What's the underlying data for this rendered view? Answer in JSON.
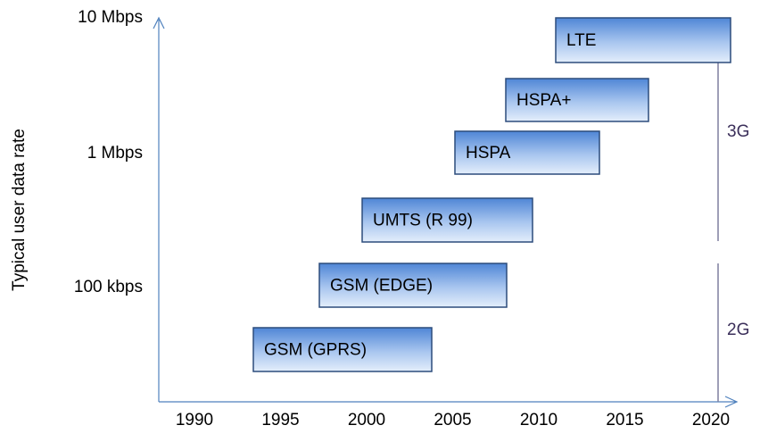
{
  "y_axis": {
    "title": "Typical user data rate",
    "labels": [
      "10 Mbps",
      "1 Mbps",
      "100 kbps"
    ]
  },
  "x_axis": {
    "labels": [
      "1990",
      "1995",
      "2000",
      "2005",
      "2010",
      "2015",
      "2020"
    ]
  },
  "technologies": [
    "LTE",
    "HSPA+",
    "HSPA",
    "UMTS (R 99)",
    "GSM (EDGE)",
    "GSM (GPRS)"
  ],
  "generations": [
    "3G",
    "2G"
  ]
}
